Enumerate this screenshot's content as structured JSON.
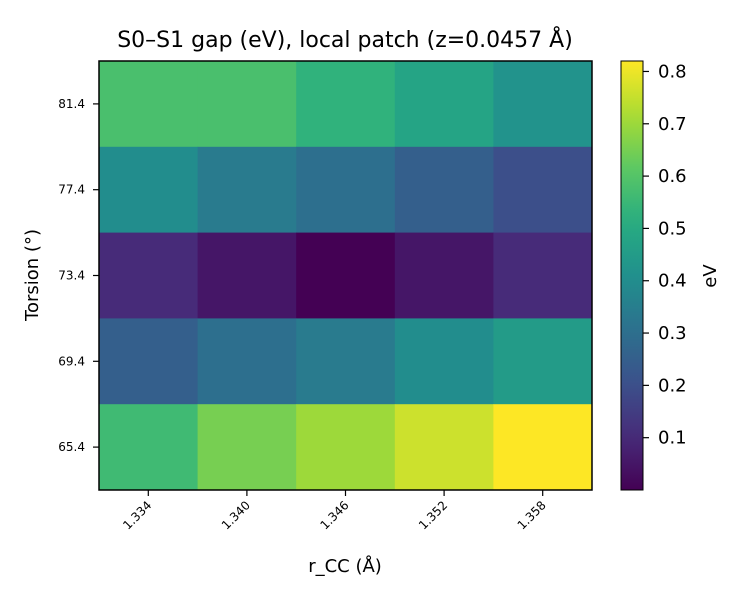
{
  "chart_data": {
    "type": "heatmap",
    "title": "S0–S1 gap (eV), local patch (z=0.0457 Å)",
    "xlabel": "r_CC (Å)",
    "ylabel": "Torsion (°)",
    "x_categories": [
      "1.334",
      "1.340",
      "1.346",
      "1.352",
      "1.358"
    ],
    "y_categories": [
      "81.4",
      "77.4",
      "73.4",
      "69.4",
      "65.4"
    ],
    "values": [
      [
        0.58,
        0.58,
        0.53,
        0.48,
        0.42
      ],
      [
        0.4,
        0.34,
        0.3,
        0.25,
        0.2
      ],
      [
        0.1,
        0.05,
        0.0,
        0.05,
        0.1
      ],
      [
        0.25,
        0.3,
        0.34,
        0.4,
        0.45
      ],
      [
        0.56,
        0.65,
        0.7,
        0.76,
        0.82
      ]
    ],
    "colorbar": {
      "label": "eV",
      "range": [
        0.0,
        0.82
      ],
      "ticks": [
        0.1,
        0.2,
        0.3,
        0.4,
        0.5,
        0.6,
        0.7,
        0.8
      ],
      "tick_labels": [
        "0.1",
        "0.2",
        "0.3",
        "0.4",
        "0.5",
        "0.6",
        "0.7",
        "0.8"
      ]
    },
    "colormap": "viridis",
    "grid": false
  }
}
